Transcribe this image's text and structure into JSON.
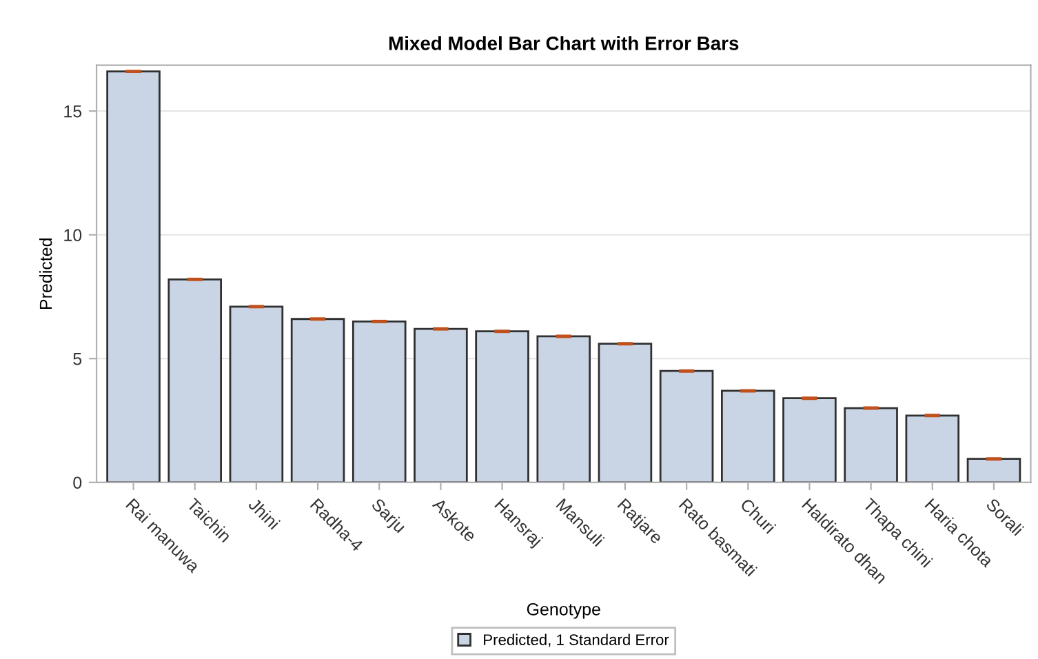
{
  "chart_data": {
    "type": "bar",
    "title": "Mixed Model Bar Chart with Error Bars",
    "xlabel": "Genotype",
    "ylabel": "Predicted",
    "categories": [
      "Rai manuwa",
      "Taichin",
      "Jhini",
      "Radha-4",
      "Sarju",
      "Askote",
      "Hansraj",
      "Mansuli",
      "Ratjare",
      "Rato basmati",
      "Churi",
      "Haldirato dhan",
      "Thapa chini",
      "Haria chota",
      "Sorali"
    ],
    "series": [
      {
        "name": "Predicted, 1 Standard Error",
        "color": "#c9d5e5",
        "values": [
          16.6,
          8.2,
          7.1,
          6.6,
          6.5,
          6.2,
          6.1,
          5.9,
          5.6,
          4.5,
          3.7,
          3.4,
          3.0,
          2.7,
          0.95
        ],
        "errors": [
          0.03,
          0.03,
          0.03,
          0.03,
          0.03,
          0.03,
          0.03,
          0.03,
          0.03,
          0.03,
          0.03,
          0.03,
          0.03,
          0.03,
          0.03
        ]
      }
    ],
    "ylim": [
      0,
      16.85
    ],
    "yticks": [
      0,
      5,
      10,
      15
    ],
    "grid": "y",
    "legend": "bottom"
  }
}
